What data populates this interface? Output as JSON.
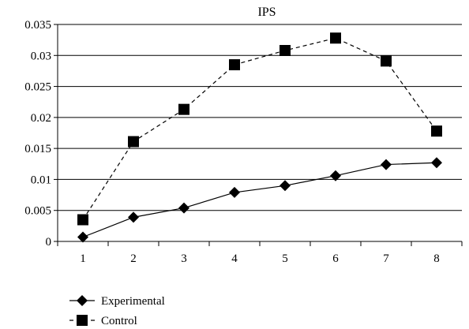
{
  "chart_data": {
    "type": "line",
    "title": "IPS",
    "xlabel": "",
    "ylabel": "",
    "categories": [
      "1",
      "2",
      "3",
      "4",
      "5",
      "6",
      "7",
      "8"
    ],
    "ylim": [
      0,
      0.035
    ],
    "yticks": [
      "0",
      "0.005",
      "0.01",
      "0.015",
      "0.02",
      "0.025",
      "0.03",
      "0.035"
    ],
    "ytick_values": [
      0,
      0.005,
      0.01,
      0.015,
      0.02,
      0.025,
      0.03,
      0.035
    ],
    "grid": "horizontal",
    "legend_position": "bottom-left",
    "series": [
      {
        "name": "Experimental",
        "values": [
          0.0007,
          0.0039,
          0.0054,
          0.0079,
          0.009,
          0.0106,
          0.0124,
          0.0127
        ],
        "marker": "diamond",
        "line_style": "solid",
        "color": "#000000"
      },
      {
        "name": "Control",
        "values": [
          0.0035,
          0.0161,
          0.0213,
          0.0285,
          0.0308,
          0.0328,
          0.0291,
          0.0178
        ],
        "marker": "square",
        "line_style": "dashed",
        "color": "#000000"
      }
    ]
  }
}
